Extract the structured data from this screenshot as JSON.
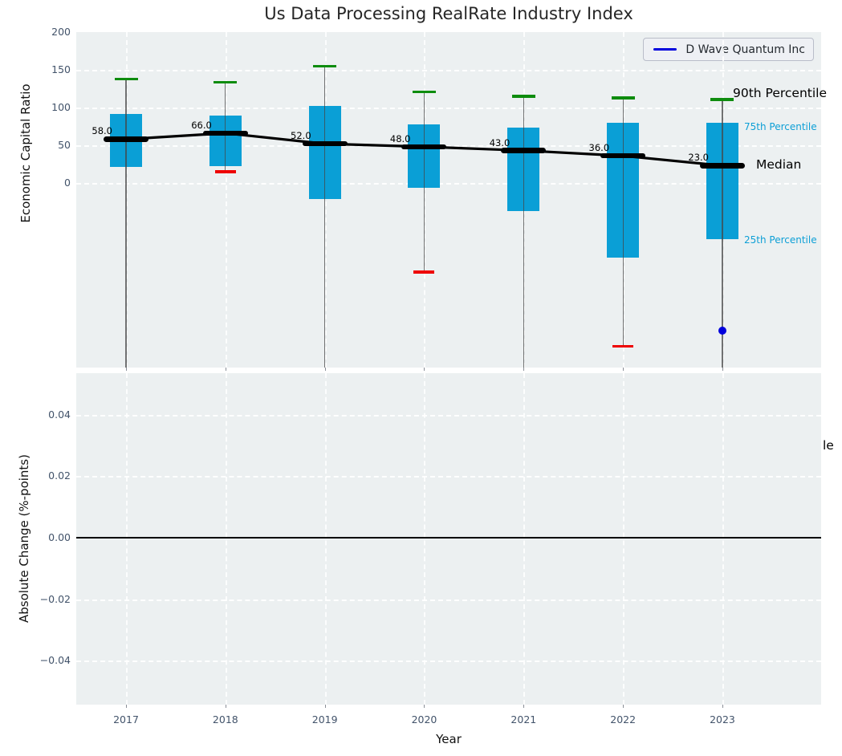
{
  "title": "Us Data Processing RealRate Industry Index",
  "legend": {
    "label": "D Wave Quantum Inc",
    "line_color": "#0000dd"
  },
  "annotations": {
    "p90": "90th Percentile",
    "p75": "75th Percentile",
    "median": "Median",
    "p25": "25th Percentile",
    "clipped_right": "le"
  },
  "chart_data": {
    "type": "box-percentile-timeseries",
    "title": "Us Data Processing RealRate Industry Index",
    "xlabel": "Year",
    "categories": [
      "2017",
      "2018",
      "2019",
      "2020",
      "2021",
      "2022",
      "2023"
    ],
    "panels": [
      {
        "name": "economic-capital-ratio",
        "ylabel": "Economic Capital Ratio",
        "ytick_labels": [
          "200",
          "150",
          "100",
          "50",
          "0"
        ],
        "ytick_values": [
          200,
          150,
          100,
          50,
          0
        ],
        "ylim": [
          -244,
          200
        ],
        "grid": "dashed-white",
        "series": [
          {
            "name": "90th Percentile",
            "values": [
              138,
              134,
              155,
              121,
              115,
              113,
              111
            ]
          },
          {
            "name": "75th Percentile",
            "values": [
              92,
              89,
              102,
              78,
              73,
              80,
              80
            ]
          },
          {
            "name": "Median",
            "values": [
              58,
              66,
              52,
              48,
              43,
              36,
              23
            ]
          },
          {
            "name": "25th Percentile",
            "values": [
              21,
              22,
              -21,
              -6,
              -37,
              -99,
              -75
            ]
          },
          {
            "name": "10th Percentile",
            "values": [
              null,
              15,
              null,
              -118,
              null,
              -216,
              null
            ]
          }
        ],
        "median_labels": [
          "58.0",
          "66.0",
          "52.0",
          "48.0",
          "43.0",
          "36.0",
          "23.0"
        ],
        "company_point": {
          "series": "D Wave Quantum Inc",
          "category": "2023",
          "value": -196
        },
        "legend_position": "upper right"
      },
      {
        "name": "absolute-change",
        "ylabel": "Absolute Change (%-points)",
        "ytick_labels": [
          "0.04",
          "0.02",
          "0.00",
          "−0.02",
          "−0.04"
        ],
        "ytick_values": [
          0.04,
          0.02,
          0,
          -0.02,
          -0.04
        ],
        "ylim": [
          -0.054,
          0.054
        ],
        "grid": "dashed-white",
        "zero_line": true
      }
    ],
    "colors": {
      "box": "#0a9fd6",
      "p90_cap": "#0e8c0e",
      "p10_cap": "#ee0000",
      "median": "#000000",
      "company": "#0000dd",
      "axes_background": "#ecf0f1",
      "grid": "#ffffff",
      "tick_label": "#42536a"
    }
  }
}
